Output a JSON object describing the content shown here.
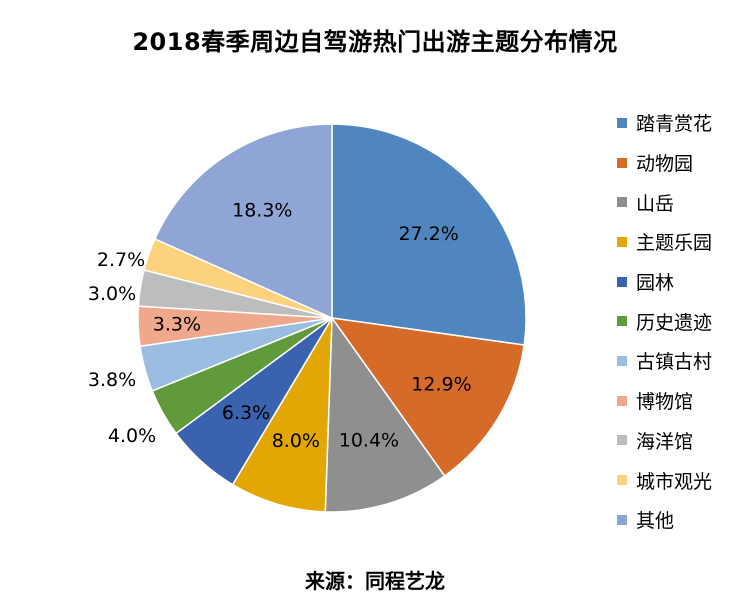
{
  "title": "2018春季周边自驾游热门出游主题分布情况",
  "source": "来源：同程艺龙",
  "chart_data": {
    "type": "pie",
    "title": "2018春季周边自驾游热门出游主题分布情况",
    "start_angle_deg": 0,
    "direction": "clockwise",
    "legend_position": "right",
    "slices": [
      {
        "label": "踏青赏花",
        "value": 27.2,
        "display": "27.2%",
        "color": "#4F86BF",
        "label_inside": true
      },
      {
        "label": "动物园",
        "value": 12.9,
        "display": "12.9%",
        "color": "#D66A29",
        "label_inside": true
      },
      {
        "label": "山岳",
        "value": 10.4,
        "display": "10.4%",
        "color": "#8F8F8F",
        "label_inside": true
      },
      {
        "label": "主题乐园",
        "value": 8.0,
        "display": "8.0%",
        "color": "#E2A704",
        "label_inside": true
      },
      {
        "label": "园林",
        "value": 6.3,
        "display": "6.3%",
        "color": "#3A62AE",
        "label_inside": true
      },
      {
        "label": "历史遗迹",
        "value": 4.0,
        "display": "4.0%",
        "color": "#609A3A",
        "label_inside": false
      },
      {
        "label": "古镇古村",
        "value": 3.8,
        "display": "3.8%",
        "color": "#9BBDE2",
        "label_inside": false
      },
      {
        "label": "博物馆",
        "value": 3.3,
        "display": "3.3%",
        "color": "#EFA88C",
        "label_inside": true
      },
      {
        "label": "海洋馆",
        "value": 3.0,
        "display": "3.0%",
        "color": "#BDBDBD",
        "label_inside": false
      },
      {
        "label": "城市观光",
        "value": 2.7,
        "display": "2.7%",
        "color": "#FCD27C",
        "label_inside": false
      },
      {
        "label": "其他",
        "value": 18.3,
        "display": "18.3%",
        "color": "#8EA5D6",
        "label_inside": true
      }
    ]
  }
}
